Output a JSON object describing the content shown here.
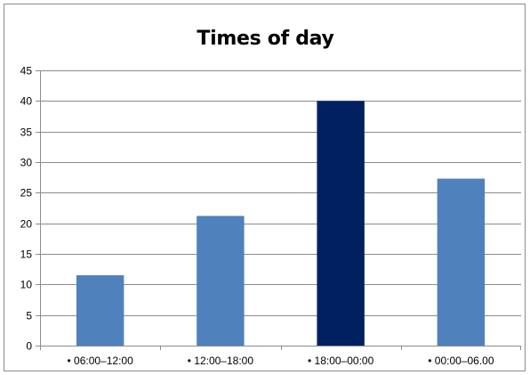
{
  "chart_data": {
    "type": "bar",
    "title": "Times of day",
    "categories": [
      "• 06:00–12:00",
      "• 12:00–18:00",
      "• 18:00–00:00",
      "• 00:00–06.00"
    ],
    "values": [
      11.5,
      21.2,
      40.0,
      27.3
    ],
    "ylim": [
      0,
      45
    ],
    "yticks": [
      0,
      5,
      10,
      15,
      20,
      25,
      30,
      35,
      40,
      45
    ],
    "grid": true,
    "legend": "none",
    "colors": {
      "bar": "#4f81bd",
      "highlight": "#002060",
      "highlight_index": 2,
      "grid": "#8c8c8c",
      "axis": "#8c8c8c"
    }
  }
}
